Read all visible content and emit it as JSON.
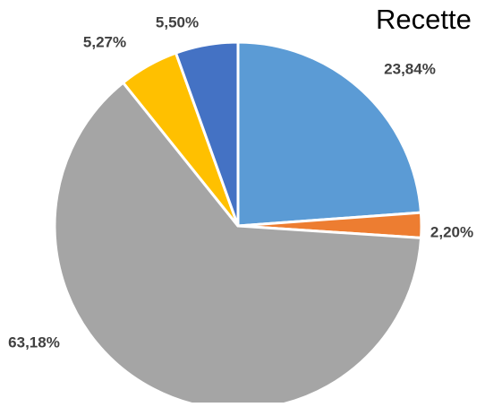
{
  "chart_data": {
    "type": "pie",
    "title": "Recette",
    "slices": [
      {
        "value": 23.84,
        "label": "23,84%",
        "color": "#5B9BD5"
      },
      {
        "value": 2.2,
        "label": "2,20%",
        "color": "#ED7D31"
      },
      {
        "value": 63.18,
        "label": "63,18%",
        "color": "#A5A5A5"
      },
      {
        "value": 5.27,
        "label": "5,27%",
        "color": "#FFC000"
      },
      {
        "value": 5.5,
        "label": "5,50%",
        "color": "#4472C4"
      }
    ],
    "start_angle": "12 o'clock",
    "direction": "clockwise",
    "legend": "none"
  }
}
